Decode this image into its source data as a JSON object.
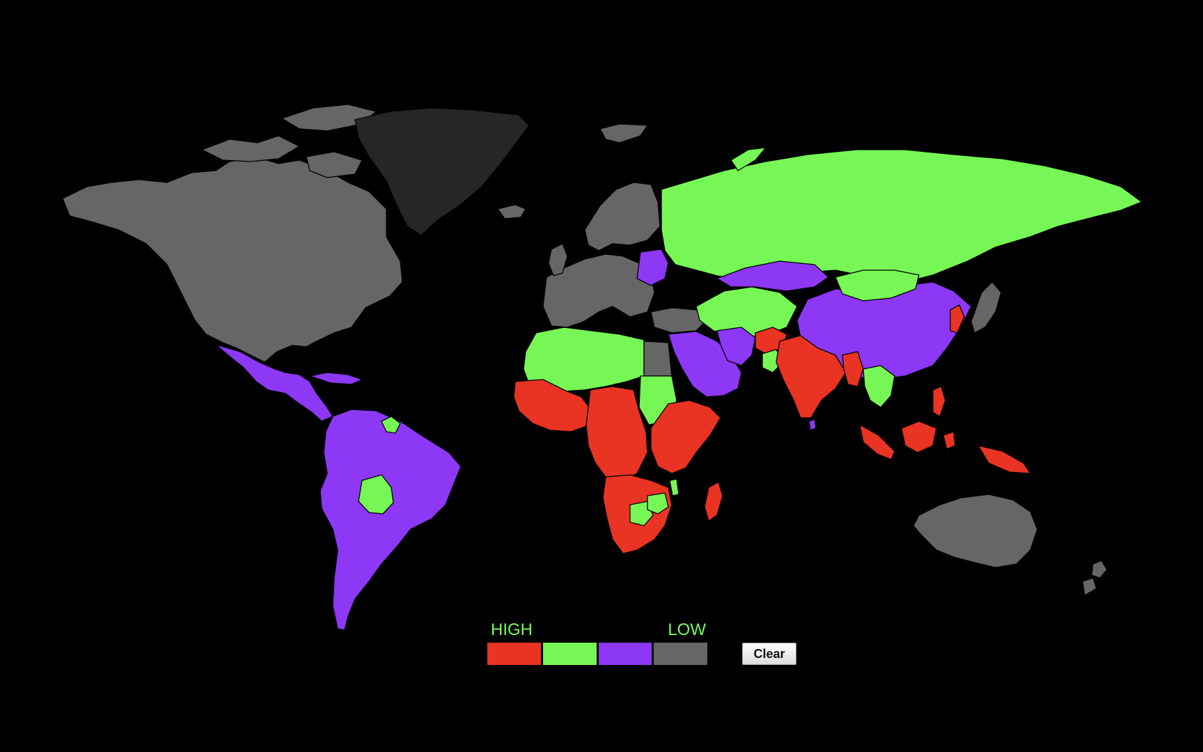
{
  "legend": {
    "high_label": "HIGH",
    "low_label": "LOW",
    "levels": [
      {
        "color": "#e93323"
      },
      {
        "color": "#77f755"
      },
      {
        "color": "#8c38f5"
      },
      {
        "color": "#666666"
      }
    ]
  },
  "controls": {
    "clear_label": "Clear"
  },
  "colors": {
    "background": "#000000",
    "greenland": "#262626",
    "legend_text": "#77ff55"
  },
  "map": {
    "regions": [
      {
        "name": "north-america-region",
        "level": 3
      },
      {
        "name": "greenland-region",
        "level": "greenland"
      },
      {
        "name": "iceland-region",
        "level": 3
      },
      {
        "name": "svalbard-region",
        "level": 3
      },
      {
        "name": "mexico-central-america-region",
        "level": 2
      },
      {
        "name": "caribbean-region",
        "level": 2
      },
      {
        "name": "south-america-region",
        "level": 2
      },
      {
        "name": "guyana-region",
        "level": 1
      },
      {
        "name": "bolivia-region",
        "level": 1
      },
      {
        "name": "europe-region",
        "level": 3
      },
      {
        "name": "scandinavia-region",
        "level": 3
      },
      {
        "name": "uk-ireland-region",
        "level": 3
      },
      {
        "name": "belarus-ukraine-region",
        "level": 2
      },
      {
        "name": "turkey-region",
        "level": 3
      },
      {
        "name": "russia-region",
        "level": 1
      },
      {
        "name": "novaya-zemlya-region",
        "level": 1
      },
      {
        "name": "central-asia-region",
        "level": 1
      },
      {
        "name": "western-china-region",
        "level": 2
      },
      {
        "name": "china-region",
        "level": 2
      },
      {
        "name": "mongolia-region",
        "level": 1
      },
      {
        "name": "korea-region",
        "level": 0
      },
      {
        "name": "japan-region",
        "level": 3
      },
      {
        "name": "middle-east-region",
        "level": 2
      },
      {
        "name": "iran-region",
        "level": 2
      },
      {
        "name": "afghanistan-region",
        "level": 0
      },
      {
        "name": "pakistan-region",
        "level": 1
      },
      {
        "name": "india-region",
        "level": 0
      },
      {
        "name": "sri-lanka-region",
        "level": 2
      },
      {
        "name": "myanmar-region",
        "level": 0
      },
      {
        "name": "thailand-region",
        "level": 1
      },
      {
        "name": "indonesia-sumatra-region",
        "level": 0
      },
      {
        "name": "borneo-region",
        "level": 0
      },
      {
        "name": "philippines-region",
        "level": 0
      },
      {
        "name": "sulawesi-region",
        "level": 0
      },
      {
        "name": "new-guinea-region",
        "level": 0
      },
      {
        "name": "north-africa-region",
        "level": 1
      },
      {
        "name": "egypt-region",
        "level": 3
      },
      {
        "name": "sudan-region",
        "level": 1
      },
      {
        "name": "west-africa-region",
        "level": 0
      },
      {
        "name": "central-africa-region",
        "level": 0
      },
      {
        "name": "east-africa-region",
        "level": 0
      },
      {
        "name": "southern-africa-region",
        "level": 0
      },
      {
        "name": "botswana-region",
        "level": 1
      },
      {
        "name": "zimbabwe-region",
        "level": 1
      },
      {
        "name": "malawi-region",
        "level": 1
      },
      {
        "name": "madagascar-region",
        "level": 0
      },
      {
        "name": "australia-region",
        "level": 3
      },
      {
        "name": "new-zealand-north-region",
        "level": 3
      },
      {
        "name": "new-zealand-south-region",
        "level": 3
      }
    ]
  }
}
